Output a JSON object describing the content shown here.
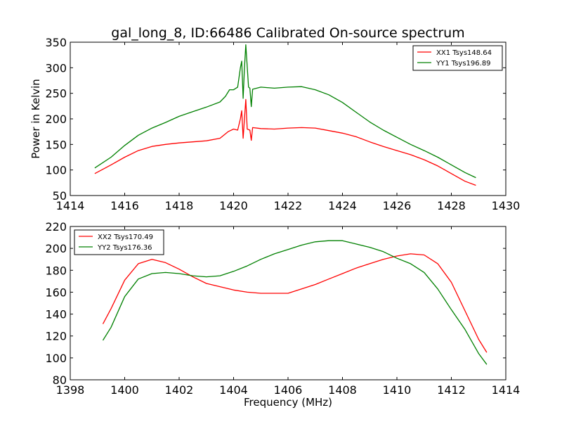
{
  "chart_data": [
    {
      "type": "line",
      "title": "gal_long_8, ID:66486 Calibrated On-source spectrum",
      "xlabel": "",
      "ylabel": "Power in Kelvin",
      "xlim": [
        1414,
        1430
      ],
      "ylim": [
        50,
        350
      ],
      "xticks": [
        1414,
        1416,
        1418,
        1420,
        1422,
        1424,
        1426,
        1428,
        1430
      ],
      "yticks": [
        50,
        100,
        150,
        200,
        250,
        300,
        350
      ],
      "grid": false,
      "legend_position": "top-right",
      "series": [
        {
          "name": "XX1 Tsys148.64",
          "color": "#ff0000",
          "points": [
            [
              1414.9,
              93
            ],
            [
              1415.5,
              110
            ],
            [
              1416.0,
              125
            ],
            [
              1416.5,
              138
            ],
            [
              1417.0,
              146
            ],
            [
              1417.5,
              150
            ],
            [
              1418.0,
              153
            ],
            [
              1418.5,
              155
            ],
            [
              1419.0,
              157
            ],
            [
              1419.5,
              162
            ],
            [
              1419.8,
              175
            ],
            [
              1420.0,
              180
            ],
            [
              1420.15,
              178
            ],
            [
              1420.25,
              200
            ],
            [
              1420.3,
              216
            ],
            [
              1420.35,
              162
            ],
            [
              1420.4,
              200
            ],
            [
              1420.45,
              238
            ],
            [
              1420.5,
              180
            ],
            [
              1420.6,
              178
            ],
            [
              1420.65,
              158
            ],
            [
              1420.7,
              183
            ],
            [
              1421.0,
              181
            ],
            [
              1421.5,
              180
            ],
            [
              1422.0,
              182
            ],
            [
              1422.5,
              183
            ],
            [
              1423.0,
              182
            ],
            [
              1423.5,
              177
            ],
            [
              1424.0,
              172
            ],
            [
              1424.5,
              165
            ],
            [
              1425.0,
              155
            ],
            [
              1425.5,
              146
            ],
            [
              1426.0,
              138
            ],
            [
              1426.5,
              130
            ],
            [
              1427.0,
              120
            ],
            [
              1427.5,
              108
            ],
            [
              1428.0,
              93
            ],
            [
              1428.5,
              78
            ],
            [
              1428.9,
              70
            ]
          ]
        },
        {
          "name": "YY1 Tsys196.89",
          "color": "#008000",
          "points": [
            [
              1414.9,
              104
            ],
            [
              1415.5,
              125
            ],
            [
              1416.0,
              148
            ],
            [
              1416.5,
              168
            ],
            [
              1417.0,
              182
            ],
            [
              1417.5,
              193
            ],
            [
              1418.0,
              205
            ],
            [
              1418.5,
              214
            ],
            [
              1419.0,
              223
            ],
            [
              1419.5,
              233
            ],
            [
              1419.7,
              244
            ],
            [
              1419.85,
              257
            ],
            [
              1420.0,
              257
            ],
            [
              1420.15,
              262
            ],
            [
              1420.25,
              300
            ],
            [
              1420.3,
              313
            ],
            [
              1420.35,
              240
            ],
            [
              1420.4,
              300
            ],
            [
              1420.45,
              345
            ],
            [
              1420.55,
              262
            ],
            [
              1420.6,
              260
            ],
            [
              1420.65,
              224
            ],
            [
              1420.7,
              258
            ],
            [
              1421.0,
              262
            ],
            [
              1421.5,
              260
            ],
            [
              1422.0,
              262
            ],
            [
              1422.5,
              263
            ],
            [
              1423.0,
              257
            ],
            [
              1423.5,
              247
            ],
            [
              1424.0,
              232
            ],
            [
              1424.5,
              213
            ],
            [
              1425.0,
              194
            ],
            [
              1425.5,
              178
            ],
            [
              1426.0,
              164
            ],
            [
              1426.5,
              150
            ],
            [
              1427.0,
              138
            ],
            [
              1427.5,
              125
            ],
            [
              1428.0,
              110
            ],
            [
              1428.5,
              95
            ],
            [
              1428.9,
              85
            ]
          ]
        }
      ]
    },
    {
      "type": "line",
      "title": "",
      "xlabel": "Frequency (MHz)",
      "ylabel": "",
      "xlim": [
        1398,
        1414
      ],
      "ylim": [
        80,
        220
      ],
      "xticks": [
        1398,
        1400,
        1402,
        1404,
        1406,
        1408,
        1410,
        1412,
        1414
      ],
      "yticks": [
        80,
        100,
        120,
        140,
        160,
        180,
        200,
        220
      ],
      "grid": false,
      "legend_position": "top-left",
      "series": [
        {
          "name": "XX2 Tsys170.49",
          "color": "#ff0000",
          "points": [
            [
              1399.2,
              131
            ],
            [
              1399.5,
              145
            ],
            [
              1400.0,
              171
            ],
            [
              1400.5,
              186
            ],
            [
              1401.0,
              190
            ],
            [
              1401.5,
              187
            ],
            [
              1402.0,
              181
            ],
            [
              1402.5,
              174
            ],
            [
              1403.0,
              168
            ],
            [
              1403.5,
              165
            ],
            [
              1404.0,
              162
            ],
            [
              1404.5,
              160
            ],
            [
              1405.0,
              159
            ],
            [
              1405.5,
              159
            ],
            [
              1406.0,
              159
            ],
            [
              1406.5,
              163
            ],
            [
              1407.0,
              167
            ],
            [
              1407.5,
              172
            ],
            [
              1408.0,
              177
            ],
            [
              1408.5,
              182
            ],
            [
              1409.0,
              186
            ],
            [
              1409.5,
              190
            ],
            [
              1410.0,
              193
            ],
            [
              1410.5,
              195
            ],
            [
              1411.0,
              194
            ],
            [
              1411.5,
              186
            ],
            [
              1412.0,
              169
            ],
            [
              1412.5,
              143
            ],
            [
              1413.0,
              117
            ],
            [
              1413.3,
              105
            ]
          ]
        },
        {
          "name": "YY2 Tsys176.36",
          "color": "#008000",
          "points": [
            [
              1399.2,
              116
            ],
            [
              1399.5,
              128
            ],
            [
              1400.0,
              156
            ],
            [
              1400.5,
              172
            ],
            [
              1401.0,
              177
            ],
            [
              1401.5,
              178
            ],
            [
              1402.0,
              177
            ],
            [
              1402.5,
              175
            ],
            [
              1403.0,
              174
            ],
            [
              1403.5,
              175
            ],
            [
              1404.0,
              179
            ],
            [
              1404.5,
              184
            ],
            [
              1405.0,
              190
            ],
            [
              1405.5,
              195
            ],
            [
              1406.0,
              199
            ],
            [
              1406.5,
              203
            ],
            [
              1407.0,
              206
            ],
            [
              1407.5,
              207
            ],
            [
              1408.0,
              207
            ],
            [
              1408.5,
              204
            ],
            [
              1409.0,
              201
            ],
            [
              1409.5,
              197
            ],
            [
              1410.0,
              191
            ],
            [
              1410.5,
              186
            ],
            [
              1411.0,
              178
            ],
            [
              1411.5,
              163
            ],
            [
              1412.0,
              144
            ],
            [
              1412.5,
              126
            ],
            [
              1413.0,
              104
            ],
            [
              1413.3,
              94
            ]
          ]
        }
      ]
    }
  ]
}
